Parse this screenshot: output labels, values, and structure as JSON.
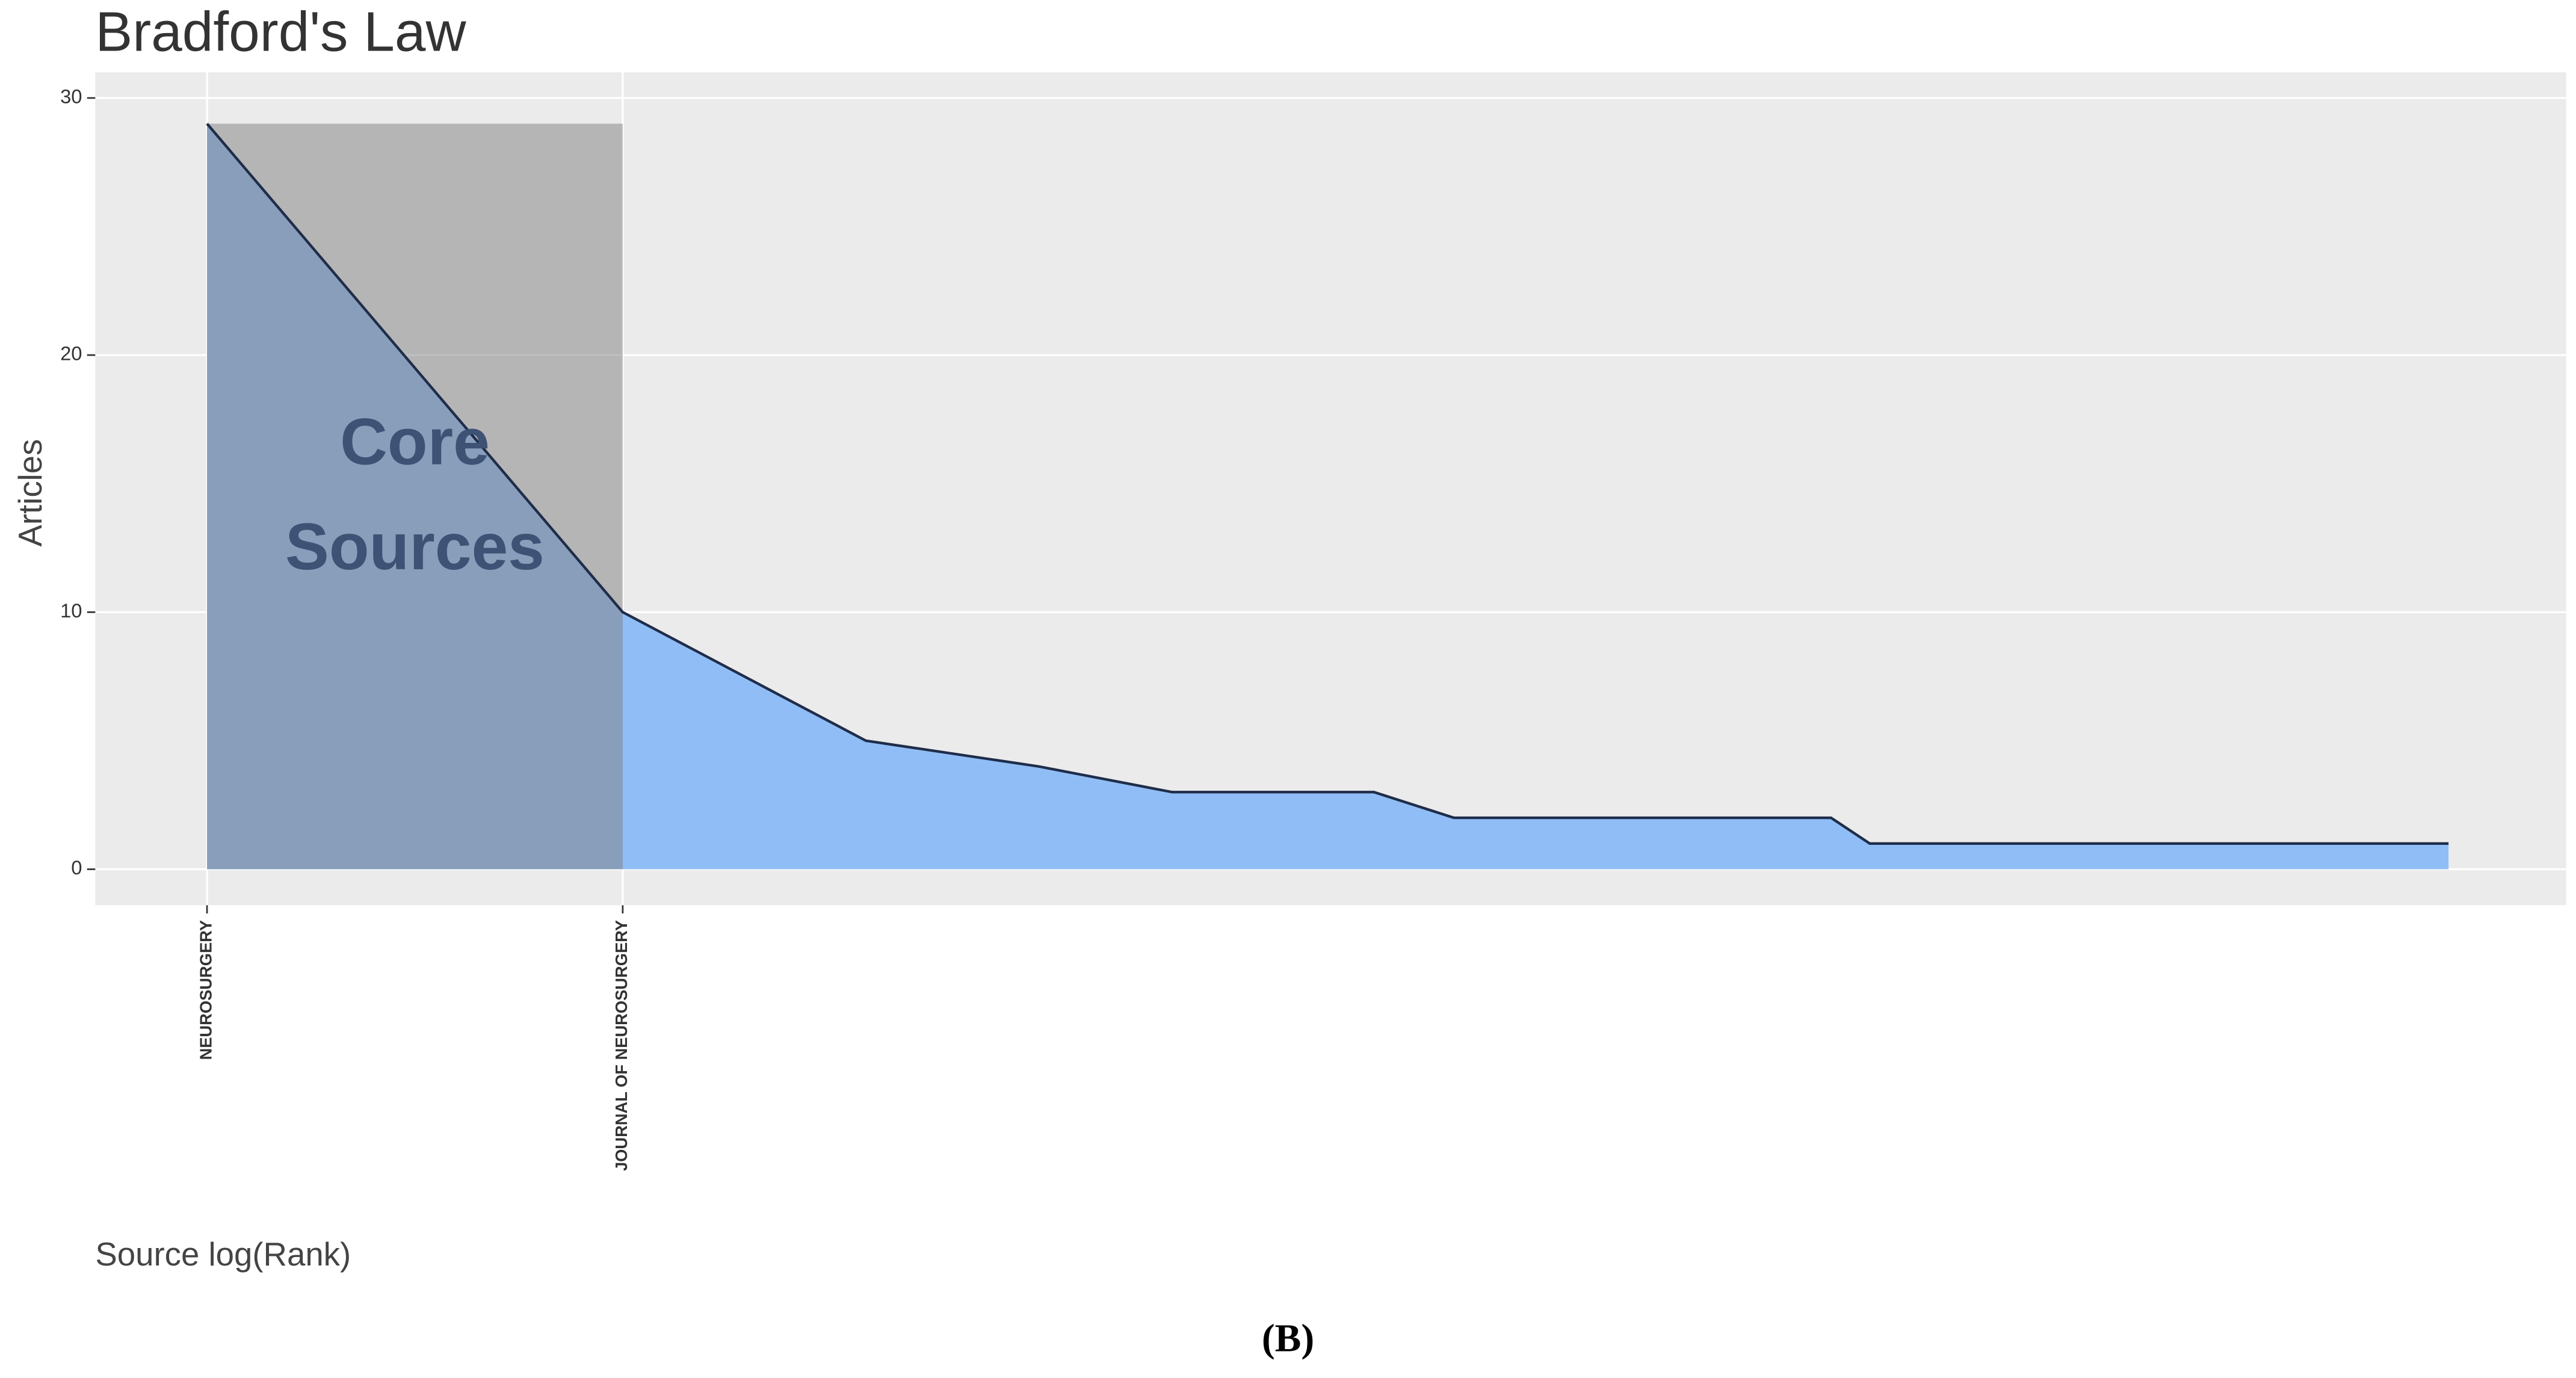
{
  "chart_data": {
    "type": "area",
    "title": "Bradford's Law",
    "ylabel": "Articles",
    "xlabel": "Source log(Rank)",
    "x": [
      1,
      2,
      3,
      4,
      5,
      7,
      8,
      15,
      16,
      42
    ],
    "values": [
      29,
      10,
      5,
      4,
      3,
      3,
      2,
      2,
      1,
      1
    ],
    "color": "#90bdf5",
    "line_color": "#1f2d4a",
    "zone_color": "#808080",
    "xscale": "log",
    "xlim": [
      0.83,
      51.1
    ],
    "xticks": [
      {
        "value": 1,
        "label": "NEUROSURGERY"
      },
      {
        "value": 2,
        "label": "JOURNAL OF NEUROSURGERY"
      }
    ],
    "ylim": [
      -1.4,
      31
    ],
    "yticks": [
      0,
      10,
      20,
      30
    ],
    "grid": true,
    "annotation": [
      "Core",
      "Sources"
    ]
  },
  "caption": "(B)"
}
